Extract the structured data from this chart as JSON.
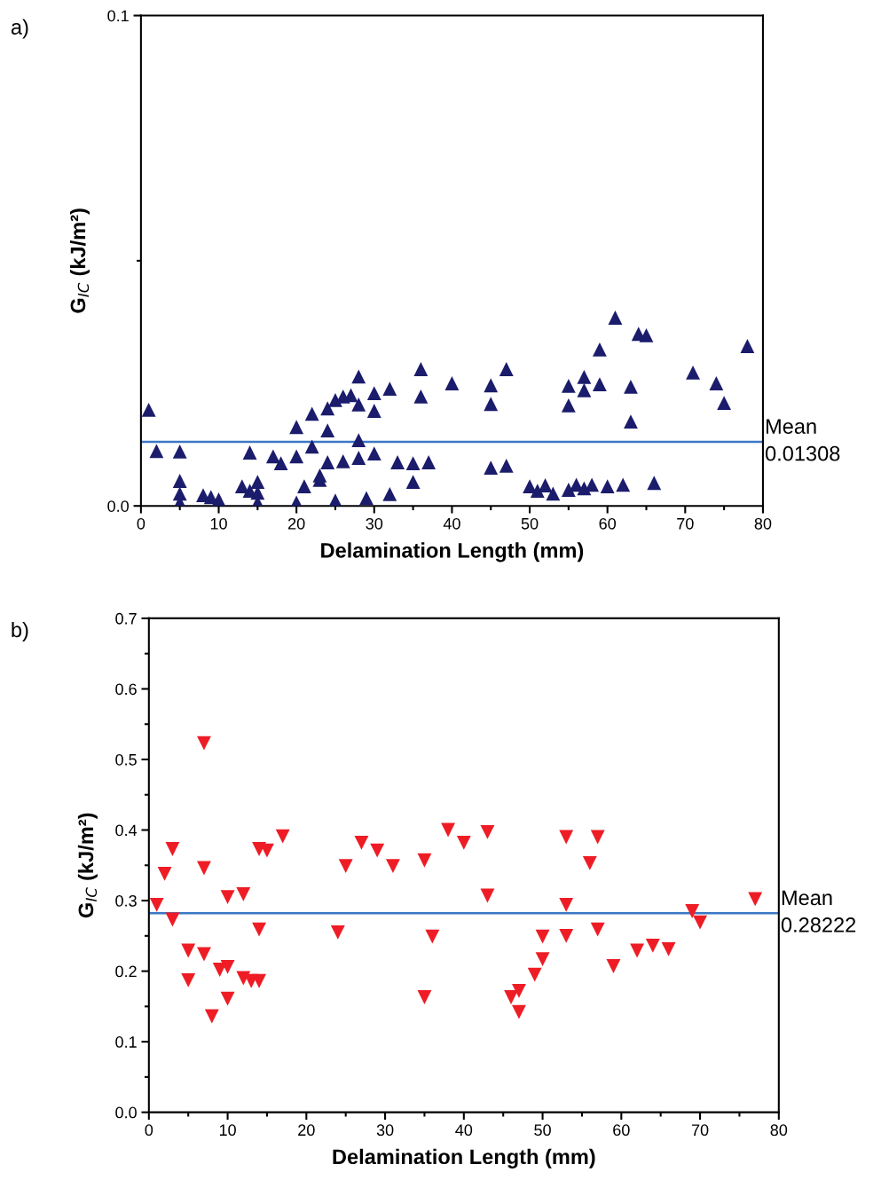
{
  "chart_data": [
    {
      "type": "scatter",
      "title": "a)",
      "xlabel": "Delamination Length (mm)",
      "ylabel": "G$_{IC}$ (kJ/m²)",
      "marker": "triangle",
      "grid": false,
      "legend": false,
      "xlim": [
        0,
        80
      ],
      "ylim": [
        0,
        0.1
      ],
      "xticks": [
        0,
        {
          "value": 5,
          "label": null
        },
        10,
        {
          "value": 15,
          "label": null
        },
        20,
        {
          "value": 25,
          "label": null
        },
        30,
        {
          "value": 35,
          "label": null
        },
        40,
        {
          "value": 45,
          "label": null
        },
        50,
        {
          "value": 55,
          "label": null
        },
        60,
        {
          "value": 65,
          "label": null
        },
        70,
        {
          "value": 75,
          "label": null
        },
        80
      ],
      "yticks": [
        {
          "value": 0,
          "label": "0.0"
        },
        {
          "value": 0.05,
          "label": null
        },
        0.1
      ],
      "ref_lines": [
        {
          "axis": "y",
          "value": 0.01308,
          "label": "Mean\n0.01308",
          "color": "#3b78c4",
          "line_style": "solid"
        }
      ],
      "series": [
        {
          "color": "#1b1c6b",
          "x": [
            1,
            2,
            5,
            5,
            5,
            5,
            8,
            9,
            10,
            13,
            14,
            14,
            15,
            15,
            15,
            17,
            18,
            20,
            20,
            20,
            21,
            22,
            22,
            23,
            23,
            24,
            24,
            24,
            25,
            25,
            26,
            26,
            27,
            28,
            28,
            28,
            28,
            29,
            30,
            30,
            30,
            32,
            32,
            33,
            35,
            35,
            36,
            36,
            37,
            40,
            45,
            45,
            45,
            47,
            47,
            50,
            51,
            52,
            53,
            55,
            55,
            55,
            56,
            57,
            57,
            57,
            58,
            59,
            59,
            60,
            61,
            62,
            63,
            63,
            64,
            65,
            66,
            71,
            74,
            75,
            78
          ],
          "values": [
            0.0196,
            0.0112,
            0.0111,
            0.0051,
            0.0025,
            0.0007,
            0.0022,
            0.0018,
            0.0013,
            0.004,
            0.0109,
            0.0031,
            0.0049,
            0.0027,
            0.0007,
            0.0101,
            0.0087,
            0.0161,
            0.0101,
            0.0007,
            0.004,
            0.0188,
            0.0121,
            0.0062,
            0.0053,
            0.0199,
            0.0154,
            0.0089,
            0.0216,
            0.0011,
            0.0223,
            0.0091,
            0.0226,
            0.0264,
            0.0207,
            0.0134,
            0.0098,
            0.0016,
            0.023,
            0.0194,
            0.0107,
            0.0239,
            0.0024,
            0.0089,
            0.0087,
            0.0049,
            0.0279,
            0.0223,
            0.0089,
            0.025,
            0.0246,
            0.0208,
            0.0078,
            0.0279,
            0.0082,
            0.004,
            0.0031,
            0.0042,
            0.0025,
            0.0245,
            0.0205,
            0.0033,
            0.0043,
            0.0263,
            0.0236,
            0.0036,
            0.0043,
            0.0248,
            0.0319,
            0.004,
            0.0384,
            0.0043,
            0.0243,
            0.0172,
            0.0351,
            0.0348,
            0.0047,
            0.0272,
            0.025,
            0.021,
            0.0326
          ]
        }
      ]
    },
    {
      "type": "scatter",
      "title": "b)",
      "xlabel": "Delamination Length (mm)",
      "ylabel": "G$_{IC}$ (kJ/m²)",
      "marker": "triangle-down",
      "grid": false,
      "legend": false,
      "xlim": [
        0,
        80
      ],
      "ylim": [
        0,
        0.7
      ],
      "xticks": [
        0,
        {
          "value": 5,
          "label": null
        },
        10,
        {
          "value": 15,
          "label": null
        },
        20,
        {
          "value": 25,
          "label": null
        },
        30,
        {
          "value": 35,
          "label": null
        },
        40,
        {
          "value": 45,
          "label": null
        },
        50,
        {
          "value": 55,
          "label": null
        },
        60,
        {
          "value": 65,
          "label": null
        },
        70,
        {
          "value": 75,
          "label": null
        },
        80
      ],
      "yticks": [
        {
          "value": 0,
          "label": "0.0"
        },
        {
          "value": 0.05,
          "label": null
        },
        0.1,
        {
          "value": 0.15,
          "label": null
        },
        0.2,
        {
          "value": 0.25,
          "label": null
        },
        0.3,
        {
          "value": 0.35,
          "label": null
        },
        0.4,
        {
          "value": 0.45,
          "label": null
        },
        0.5,
        {
          "value": 0.55,
          "label": null
        },
        0.6,
        {
          "value": 0.65,
          "label": null
        },
        0.7
      ],
      "ref_lines": [
        {
          "axis": "y",
          "value": 0.28222,
          "label": "Mean\n0.28222",
          "color": "#3b78c4",
          "line_style": "solid"
        }
      ],
      "series": [
        {
          "color": "#ee1c25",
          "x": [
            1,
            2,
            3,
            3,
            5,
            5,
            7,
            7,
            7,
            8,
            9,
            10,
            10,
            10,
            12,
            12,
            13,
            14,
            14,
            14,
            15,
            17,
            24,
            25,
            27,
            29,
            31,
            35,
            35,
            36,
            38,
            40,
            43,
            43,
            46,
            47,
            47,
            49,
            50,
            50,
            53,
            53,
            53,
            56,
            57,
            57,
            59,
            62,
            64,
            66,
            69,
            70,
            77
          ],
          "values": [
            0.294,
            0.338,
            0.373,
            0.273,
            0.229,
            0.187,
            0.523,
            0.346,
            0.224,
            0.136,
            0.202,
            0.305,
            0.206,
            0.161,
            0.309,
            0.19,
            0.186,
            0.186,
            0.373,
            0.259,
            0.371,
            0.391,
            0.255,
            0.349,
            0.382,
            0.371,
            0.349,
            0.357,
            0.163,
            0.249,
            0.4,
            0.382,
            0.397,
            0.307,
            0.163,
            0.172,
            0.142,
            0.195,
            0.217,
            0.249,
            0.39,
            0.294,
            0.25,
            0.353,
            0.39,
            0.259,
            0.207,
            0.229,
            0.236,
            0.231,
            0.285,
            0.269,
            0.302
          ]
        }
      ]
    }
  ]
}
